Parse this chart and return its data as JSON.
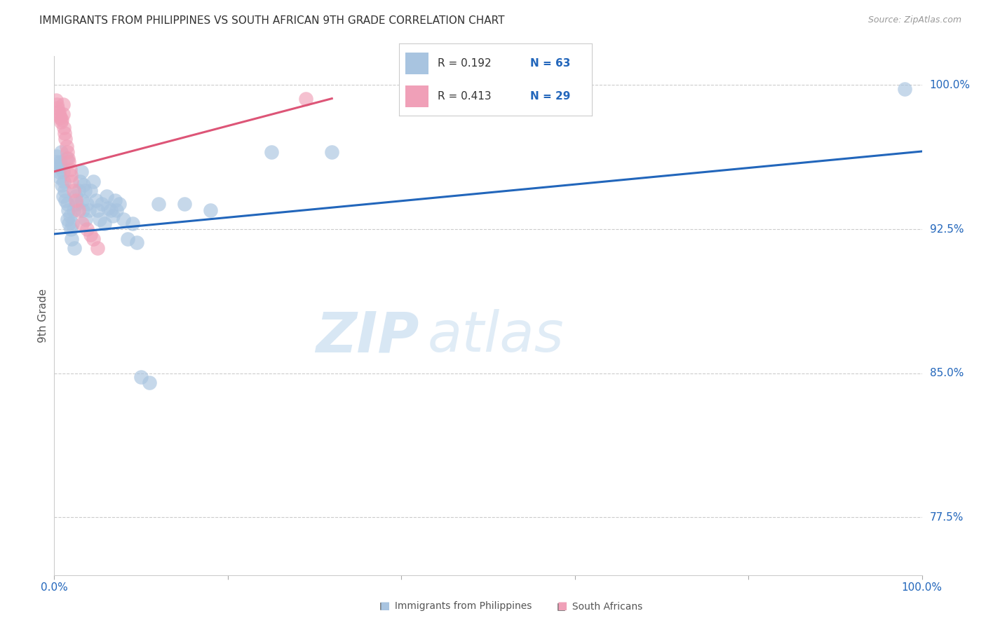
{
  "title": "IMMIGRANTS FROM PHILIPPINES VS SOUTH AFRICAN 9TH GRADE CORRELATION CHART",
  "source": "Source: ZipAtlas.com",
  "ylabel": "9th Grade",
  "xlim": [
    0.0,
    1.0
  ],
  "ylim": [
    0.745,
    1.015
  ],
  "xtick_positions": [
    0.0,
    0.2,
    0.4,
    0.6,
    0.8,
    1.0
  ],
  "xticklabels": [
    "0.0%",
    "",
    "",
    "",
    "",
    "100.0%"
  ],
  "ytick_positions": [
    0.775,
    0.85,
    0.925,
    1.0
  ],
  "yticklabels": [
    "77.5%",
    "85.0%",
    "92.5%",
    "100.0%"
  ],
  "legend_r_blue": "R = 0.192",
  "legend_n_blue": "N = 63",
  "legend_r_pink": "R = 0.413",
  "legend_n_pink": "N = 29",
  "blue_color": "#a8c4e0",
  "pink_color": "#f0a0b8",
  "blue_line_color": "#2266bb",
  "pink_line_color": "#dd5577",
  "legend_text_color": "#2266bb",
  "tick_color": "#2266bb",
  "axis_label_color": "#555555",
  "watermark_zip": "ZIP",
  "watermark_atlas": "atlas",
  "grid_color": "#cccccc",
  "blue_scatter_x": [
    0.002,
    0.003,
    0.004,
    0.005,
    0.006,
    0.007,
    0.008,
    0.008,
    0.009,
    0.01,
    0.01,
    0.011,
    0.012,
    0.013,
    0.014,
    0.015,
    0.015,
    0.016,
    0.017,
    0.018,
    0.019,
    0.02,
    0.021,
    0.022,
    0.023,
    0.025,
    0.026,
    0.028,
    0.03,
    0.031,
    0.032,
    0.033,
    0.034,
    0.035,
    0.036,
    0.038,
    0.04,
    0.042,
    0.045,
    0.048,
    0.05,
    0.052,
    0.055,
    0.058,
    0.06,
    0.062,
    0.065,
    0.068,
    0.07,
    0.072,
    0.075,
    0.08,
    0.085,
    0.09,
    0.095,
    0.1,
    0.11,
    0.12,
    0.15,
    0.18,
    0.25,
    0.32,
    0.98
  ],
  "blue_scatter_y": [
    0.96,
    0.963,
    0.958,
    0.955,
    0.952,
    0.96,
    0.965,
    0.958,
    0.948,
    0.942,
    0.955,
    0.95,
    0.945,
    0.94,
    0.962,
    0.938,
    0.93,
    0.935,
    0.928,
    0.932,
    0.925,
    0.92,
    0.928,
    0.935,
    0.915,
    0.942,
    0.938,
    0.945,
    0.95,
    0.955,
    0.94,
    0.935,
    0.948,
    0.945,
    0.93,
    0.938,
    0.935,
    0.945,
    0.95,
    0.94,
    0.935,
    0.93,
    0.938,
    0.928,
    0.942,
    0.936,
    0.935,
    0.932,
    0.94,
    0.935,
    0.938,
    0.93,
    0.92,
    0.928,
    0.918,
    0.848,
    0.845,
    0.938,
    0.938,
    0.935,
    0.965,
    0.965,
    0.998
  ],
  "pink_scatter_x": [
    0.002,
    0.003,
    0.004,
    0.005,
    0.006,
    0.007,
    0.008,
    0.009,
    0.01,
    0.01,
    0.011,
    0.012,
    0.013,
    0.014,
    0.015,
    0.016,
    0.017,
    0.018,
    0.019,
    0.02,
    0.022,
    0.025,
    0.028,
    0.032,
    0.038,
    0.042,
    0.045,
    0.05,
    0.29
  ],
  "pink_scatter_y": [
    0.992,
    0.99,
    0.988,
    0.986,
    0.984,
    0.983,
    0.981,
    0.982,
    0.985,
    0.99,
    0.978,
    0.975,
    0.972,
    0.968,
    0.965,
    0.962,
    0.96,
    0.956,
    0.953,
    0.95,
    0.945,
    0.94,
    0.935,
    0.928,
    0.925,
    0.922,
    0.92,
    0.915,
    0.993
  ],
  "blue_trend_x": [
    0.0,
    1.0
  ],
  "blue_trend_y": [
    0.9225,
    0.9655
  ],
  "pink_trend_x": [
    0.0,
    0.32
  ],
  "pink_trend_y": [
    0.955,
    0.993
  ]
}
